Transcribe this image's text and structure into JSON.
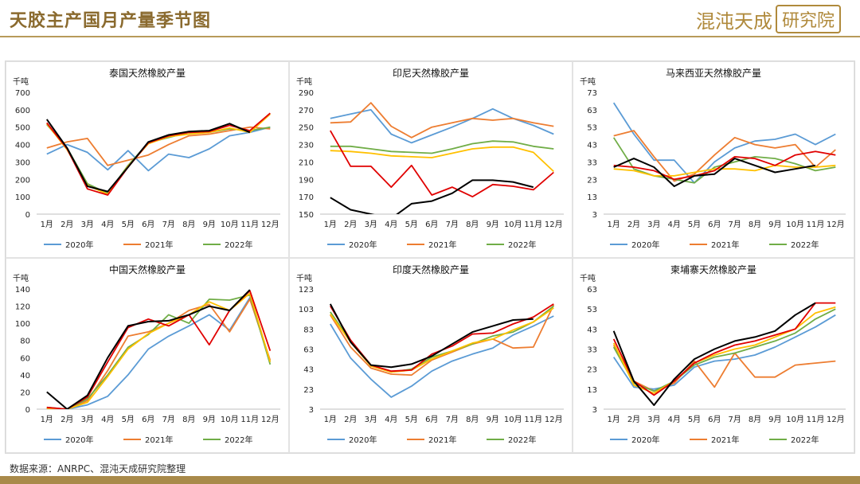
{
  "header": {
    "title": "天胶主产国月产量季节图",
    "brand_main": "混沌天成",
    "brand_boxed": "研究院"
  },
  "source_note": "数据来源：ANRPC、混沌天成研究院整理",
  "colors": {
    "s2020": "#5b9bd5",
    "s2021": "#ed7d31",
    "s2022": "#70ad47",
    "s2023": "#ffc000",
    "s2024": "#e00000",
    "s2025": "#000000"
  },
  "chart_data": [
    {
      "type": "line",
      "title": "泰国天然橡胶产量",
      "ylabel": "千吨",
      "categories": [
        "1月",
        "2月",
        "3月",
        "4月",
        "5月",
        "6月",
        "7月",
        "8月",
        "9月",
        "10月",
        "11月",
        "12月"
      ],
      "ylim": [
        0,
        700
      ],
      "yticks": [
        0,
        100,
        200,
        300,
        400,
        500,
        600,
        700
      ],
      "ytick_labels": [
        "0",
        "100",
        "200",
        "300",
        "400",
        "500",
        "600",
        "700"
      ],
      "legend": [
        "2020年",
        "2021年",
        "2022年"
      ],
      "series": [
        {
          "name": "2020年",
          "color": "#5b9bd5",
          "values": [
            345,
            400,
            355,
            255,
            365,
            250,
            345,
            325,
            375,
            450,
            470,
            500
          ]
        },
        {
          "name": "2021年",
          "color": "#ed7d31",
          "values": [
            380,
            415,
            435,
            280,
            310,
            340,
            400,
            450,
            460,
            480,
            500,
            490
          ]
        },
        {
          "name": "2022年",
          "color": "#70ad47",
          "values": [
            515,
            380,
            175,
            120,
            280,
            410,
            440,
            470,
            470,
            490,
            480,
            500
          ]
        },
        {
          "name": "",
          "color": "#ffc000",
          "values": [
            520,
            370,
            165,
            115,
            275,
            405,
            445,
            460,
            470,
            495,
            470,
            575
          ]
        },
        {
          "name": "",
          "color": "#e00000",
          "values": [
            525,
            375,
            145,
            110,
            270,
            410,
            450,
            470,
            475,
            510,
            480,
            580
          ]
        },
        {
          "name": "",
          "color": "#000000",
          "values": [
            545,
            380,
            160,
            130,
            270,
            415,
            455,
            475,
            480,
            520,
            470,
            null
          ]
        }
      ]
    },
    {
      "type": "line",
      "title": "印尼天然橡胶产量",
      "ylabel": "千吨",
      "categories": [
        "1月",
        "2月",
        "3月",
        "4月",
        "5月",
        "6月",
        "7月",
        "8月",
        "9月",
        "10月",
        "11月",
        "12月"
      ],
      "ylim": [
        150,
        290
      ],
      "yticks": [
        150,
        170,
        190,
        210,
        230,
        250,
        270,
        290
      ],
      "ytick_labels": [
        "150",
        "170",
        "190",
        "210",
        "230",
        "250",
        "270",
        "290"
      ],
      "legend": [
        "2020年",
        "2021年",
        "2022年"
      ],
      "series": [
        {
          "name": "2020年",
          "color": "#5b9bd5",
          "values": [
            260,
            265,
            270,
            242,
            232,
            241,
            250,
            260,
            271,
            260,
            252,
            242
          ]
        },
        {
          "name": "2021年",
          "color": "#ed7d31",
          "values": [
            255,
            256,
            278,
            251,
            238,
            250,
            255,
            260,
            258,
            260,
            255,
            251
          ]
        },
        {
          "name": "2022年",
          "color": "#70ad47",
          "values": [
            228,
            228,
            225,
            222,
            221,
            220,
            225,
            231,
            234,
            233,
            228,
            225
          ]
        },
        {
          "name": "",
          "color": "#ffc000",
          "values": [
            223,
            222,
            220,
            217,
            216,
            215,
            220,
            225,
            227,
            227,
            221,
            199
          ]
        },
        {
          "name": "",
          "color": "#e00000",
          "values": [
            246,
            205,
            205,
            181,
            206,
            172,
            181,
            170,
            184,
            182,
            178,
            198
          ]
        },
        {
          "name": "",
          "color": "#000000",
          "values": [
            169,
            155,
            150,
            145,
            162,
            165,
            174,
            189,
            189,
            187,
            181,
            null
          ]
        }
      ]
    },
    {
      "type": "line",
      "title": "马来西亚天然橡胶产量",
      "ylabel": "千吨",
      "categories": [
        "1月",
        "2月",
        "3月",
        "4月",
        "5月",
        "6月",
        "7月",
        "8月",
        "9月",
        "10月",
        "11月",
        "12月"
      ],
      "ylim": [
        3,
        73
      ],
      "yticks": [
        3,
        13,
        23,
        33,
        43,
        53,
        63,
        73
      ],
      "ytick_labels": [
        "3",
        "13",
        "23",
        "33",
        "43",
        "53",
        "63",
        "73"
      ],
      "legend": [
        "2020年",
        "2021年",
        "2022年"
      ],
      "series": [
        {
          "name": "2020年",
          "color": "#5b9bd5",
          "values": [
            67,
            49,
            34,
            34,
            21,
            33,
            41,
            45,
            46,
            49,
            43,
            49
          ]
        },
        {
          "name": "2021年",
          "color": "#ed7d31",
          "values": [
            48,
            51,
            36,
            22,
            26,
            37,
            47,
            43,
            41,
            43,
            30,
            40
          ]
        },
        {
          "name": "2022年",
          "color": "#70ad47",
          "values": [
            47,
            29,
            25,
            23,
            21,
            30,
            33,
            36,
            35,
            32,
            28,
            30
          ]
        },
        {
          "name": "",
          "color": "#ffc000",
          "values": [
            29,
            28,
            25,
            25,
            27,
            29,
            29,
            28,
            31,
            30,
            30,
            31
          ]
        },
        {
          "name": "",
          "color": "#e00000",
          "values": [
            31,
            30,
            28,
            23,
            25,
            28,
            36,
            35,
            31,
            37,
            39,
            37
          ]
        },
        {
          "name": "",
          "color": "#000000",
          "values": [
            30,
            35,
            30,
            19,
            25,
            26,
            35,
            31,
            27,
            29,
            31,
            null
          ]
        }
      ]
    },
    {
      "type": "line",
      "title": "中国天然橡胶产量",
      "ylabel": "千吨",
      "categories": [
        "1月",
        "2月",
        "3月",
        "4月",
        "5月",
        "6月",
        "7月",
        "8月",
        "9月",
        "10月",
        "11月",
        "12月"
      ],
      "ylim": [
        0,
        140
      ],
      "yticks": [
        0,
        20,
        40,
        60,
        80,
        100,
        120,
        140
      ],
      "ytick_labels": [
        "0",
        "20",
        "40",
        "60",
        "80",
        "100",
        "120",
        "140"
      ],
      "legend": [
        "2020年",
        "2021年",
        "2022年"
      ],
      "series": [
        {
          "name": "2020年",
          "color": "#5b9bd5",
          "values": [
            1,
            0,
            5,
            15,
            40,
            70,
            85,
            97,
            110,
            92,
            130,
            55
          ]
        },
        {
          "name": "2021年",
          "color": "#ed7d31",
          "values": [
            1,
            0,
            10,
            45,
            85,
            90,
            100,
            115,
            122,
            90,
            128,
            57
          ]
        },
        {
          "name": "2022年",
          "color": "#70ad47",
          "values": [
            2,
            0,
            12,
            40,
            72,
            87,
            110,
            100,
            128,
            127,
            133,
            52
          ]
        },
        {
          "name": "",
          "color": "#ffc000",
          "values": [
            1,
            0,
            8,
            38,
            70,
            88,
            100,
            110,
            125,
            115,
            135,
            55
          ]
        },
        {
          "name": "",
          "color": "#e00000",
          "values": [
            2,
            0,
            14,
            55,
            95,
            105,
            97,
            110,
            75,
            115,
            138,
            68
          ]
        },
        {
          "name": "",
          "color": "#000000",
          "values": [
            20,
            0,
            16,
            60,
            97,
            102,
            103,
            110,
            120,
            115,
            139,
            null
          ]
        }
      ]
    },
    {
      "type": "line",
      "title": "印度天然橡胶产量",
      "ylabel": "千吨",
      "categories": [
        "1月",
        "2月",
        "3月",
        "4月",
        "5月",
        "6月",
        "7月",
        "8月",
        "9月",
        "10月",
        "11月",
        "12月"
      ],
      "ylim": [
        3,
        123
      ],
      "yticks": [
        3,
        23,
        43,
        63,
        83,
        103,
        123
      ],
      "ytick_labels": [
        "3",
        "23",
        "43",
        "63",
        "83",
        "103",
        "123"
      ],
      "legend": [
        "2020年",
        "2021年",
        "2022年"
      ],
      "series": [
        {
          "name": "2020年",
          "color": "#5b9bd5",
          "values": [
            88,
            54,
            33,
            15,
            26,
            41,
            51,
            58,
            64,
            77,
            86,
            96
          ]
        },
        {
          "name": "2021年",
          "color": "#ed7d31",
          "values": [
            97,
            65,
            44,
            38,
            37,
            52,
            60,
            68,
            73,
            64,
            65,
            107
          ]
        },
        {
          "name": "2022年",
          "color": "#70ad47",
          "values": [
            100,
            71,
            47,
            40,
            43,
            55,
            61,
            68,
            76,
            80,
            90,
            106
          ]
        },
        {
          "name": "",
          "color": "#ffc000",
          "values": [
            98,
            70,
            46,
            40,
            42,
            53,
            61,
            69,
            73,
            82,
            90,
            104
          ]
        },
        {
          "name": "",
          "color": "#e00000",
          "values": [
            106,
            72,
            47,
            41,
            42,
            58,
            66,
            78,
            79,
            88,
            95,
            108
          ]
        },
        {
          "name": "",
          "color": "#000000",
          "values": [
            108,
            70,
            47,
            45,
            48,
            56,
            68,
            80,
            86,
            92,
            93,
            null
          ]
        }
      ]
    },
    {
      "type": "line",
      "title": "柬埔寨天然橡胶产量",
      "ylabel": "千吨",
      "categories": [
        "1月",
        "2月",
        "3月",
        "4月",
        "5月",
        "6月",
        "7月",
        "8月",
        "9月",
        "10月",
        "11月",
        "12月"
      ],
      "ylim": [
        3,
        63
      ],
      "yticks": [
        3,
        13,
        23,
        33,
        43,
        53,
        63
      ],
      "ytick_labels": [
        "3",
        "13",
        "23",
        "33",
        "43",
        "53",
        "63"
      ],
      "legend": [
        "2020年",
        "2021年",
        "2022年"
      ],
      "series": [
        {
          "name": "2020年",
          "color": "#5b9bd5",
          "values": [
            29,
            14,
            13,
            15,
            24,
            27,
            28,
            30,
            34,
            39,
            44,
            50
          ]
        },
        {
          "name": "2021年",
          "color": "#ed7d31",
          "values": [
            35,
            17,
            12,
            16,
            27,
            14,
            31,
            19,
            19,
            25,
            26,
            27
          ]
        },
        {
          "name": "2022年",
          "color": "#70ad47",
          "values": [
            34,
            16,
            12,
            17,
            25,
            29,
            31,
            34,
            37,
            41,
            48,
            53
          ]
        },
        {
          "name": "",
          "color": "#ffc000",
          "values": [
            36,
            15,
            11,
            17,
            26,
            30,
            33,
            35,
            39,
            43,
            51,
            54
          ]
        },
        {
          "name": "",
          "color": "#e00000",
          "values": [
            38,
            17,
            10,
            17,
            26,
            31,
            35,
            37,
            40,
            43,
            56,
            56
          ]
        },
        {
          "name": "",
          "color": "#000000",
          "values": [
            42,
            17,
            5,
            18,
            28,
            33,
            37,
            39,
            42,
            50,
            56,
            null
          ]
        }
      ]
    }
  ]
}
